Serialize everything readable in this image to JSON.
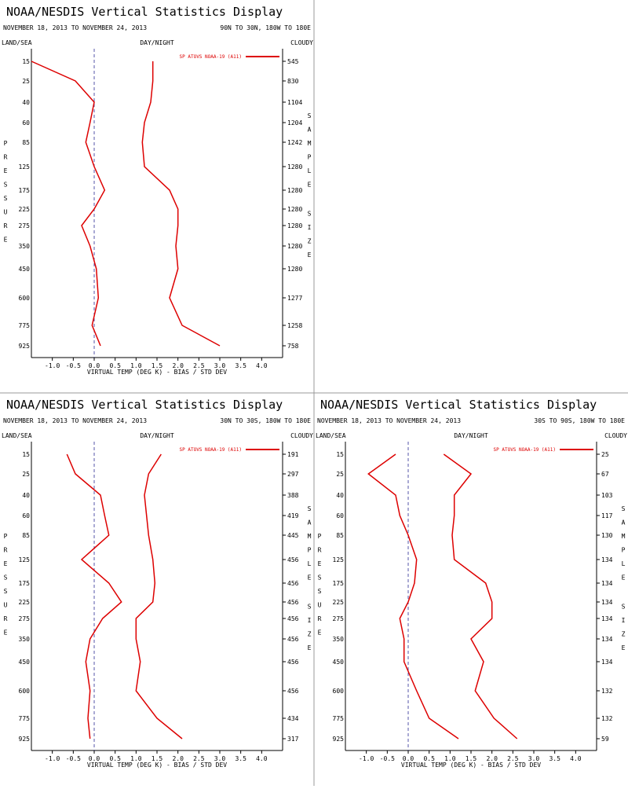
{
  "colors": {
    "line": "#dd0000",
    "frame": "#999999",
    "zero": "#5555aa",
    "text": "#000000"
  },
  "chart_data": [
    {
      "type": "line",
      "title": "NOAA/NESDIS Vertical Statistics Display",
      "date_range": "NOVEMBER 18, 2013 TO NOVEMBER 24, 2013",
      "region": "90N TO 30N, 180W TO 180E",
      "land_sea": "LAND/SEA",
      "day_night": "DAY/NIGHT",
      "cloudy": "CLOUDY",
      "ylabel": "PRESSURE",
      "y2label": "SAMPLE SIZE",
      "xlabel": "VIRTUAL TEMP (DEG K) - BIAS / STD DEV",
      "legend": "SP ATOVS NOAA-19 (A11)",
      "xlim": [
        -1.5,
        4.5
      ],
      "x_ticks": [
        "-1.0",
        "-0.5",
        "0.0",
        "0.5",
        "1.0",
        "1.5",
        "2.0",
        "2.5",
        "3.0",
        "3.5",
        "4.0"
      ],
      "pressure_levels": [
        "15",
        "25",
        "40",
        "60",
        "85",
        "125",
        "175",
        "225",
        "275",
        "350",
        "450",
        "600",
        "775",
        "925"
      ],
      "sample_size": [
        "545",
        "830",
        "1104",
        "1204",
        "1242",
        "1280",
        "1280",
        "1280",
        "1280",
        "1280",
        "1280",
        "1277",
        "1258",
        "758"
      ],
      "series": [
        {
          "kind": "bias",
          "values": [
            -1.5,
            -0.45,
            0.0,
            -0.1,
            -0.2,
            0.0,
            0.25,
            0.0,
            -0.3,
            -0.1,
            0.05,
            0.1,
            -0.05,
            0.15
          ]
        },
        {
          "kind": "std_dev",
          "values": [
            1.4,
            1.4,
            1.35,
            1.2,
            1.15,
            1.2,
            1.8,
            2.0,
            2.0,
            1.95,
            2.0,
            1.8,
            2.1,
            3.0
          ]
        }
      ]
    },
    {
      "type": "line",
      "title": "NOAA/NESDIS Vertical Statistics Display",
      "date_range": "NOVEMBER 18, 2013 TO NOVEMBER 24, 2013",
      "region": "30N TO 30S, 180W TO 180E",
      "land_sea": "LAND/SEA",
      "day_night": "DAY/NIGHT",
      "cloudy": "CLOUDY",
      "ylabel": "PRESSURE",
      "y2label": "SAMPLE SIZE",
      "xlabel": "VIRTUAL TEMP (DEG K) - BIAS / STD DEV",
      "legend": "SP ATOVS NOAA-19 (A11)",
      "xlim": [
        -1.5,
        4.5
      ],
      "x_ticks": [
        "-1.0",
        "-0.5",
        "0.0",
        "0.5",
        "1.0",
        "1.5",
        "2.0",
        "2.5",
        "3.0",
        "3.5",
        "4.0"
      ],
      "pressure_levels": [
        "15",
        "25",
        "40",
        "60",
        "85",
        "125",
        "175",
        "225",
        "275",
        "350",
        "450",
        "600",
        "775",
        "925"
      ],
      "sample_size": [
        "191",
        "297",
        "388",
        "419",
        "445",
        "456",
        "456",
        "456",
        "456",
        "456",
        "456",
        "456",
        "434",
        "317"
      ],
      "series": [
        {
          "kind": "bias",
          "values": [
            -0.65,
            -0.45,
            0.15,
            0.25,
            0.35,
            -0.3,
            0.35,
            0.65,
            0.2,
            -0.1,
            -0.2,
            -0.1,
            -0.15,
            -0.1
          ]
        },
        {
          "kind": "std_dev",
          "values": [
            1.6,
            1.3,
            1.2,
            1.25,
            1.3,
            1.4,
            1.45,
            1.4,
            1.0,
            1.0,
            1.1,
            1.0,
            1.5,
            2.1
          ]
        }
      ]
    },
    {
      "type": "line",
      "title": "NOAA/NESDIS Vertical Statistics Display",
      "date_range": "NOVEMBER 18, 2013 TO NOVEMBER 24, 2013",
      "region": "30S TO 90S, 180W TO 180E",
      "land_sea": "LAND/SEA",
      "day_night": "DAY/NIGHT",
      "cloudy": "CLOUDY",
      "ylabel": "PRESSURE",
      "y2label": "SAMPLE SIZE",
      "xlabel": "VIRTUAL TEMP (DEG K) - BIAS / STD DEV",
      "legend": "SP ATOVS NOAA-19 (A11)",
      "xlim": [
        -1.5,
        4.5
      ],
      "x_ticks": [
        "-1.0",
        "-0.5",
        "0.0",
        "0.5",
        "1.0",
        "1.5",
        "2.0",
        "2.5",
        "3.0",
        "3.5",
        "4.0"
      ],
      "pressure_levels": [
        "15",
        "25",
        "40",
        "60",
        "85",
        "125",
        "175",
        "225",
        "275",
        "350",
        "450",
        "600",
        "775",
        "925"
      ],
      "sample_size": [
        "25",
        "67",
        "103",
        "117",
        "130",
        "134",
        "134",
        "134",
        "134",
        "134",
        "134",
        "132",
        "132",
        "59"
      ],
      "series": [
        {
          "kind": "bias",
          "values": [
            -0.3,
            -0.95,
            -0.3,
            -0.2,
            0.0,
            0.2,
            0.15,
            0.0,
            -0.2,
            -0.1,
            -0.1,
            0.2,
            0.5,
            1.2
          ]
        },
        {
          "kind": "std_dev",
          "values": [
            0.85,
            1.5,
            1.1,
            1.1,
            1.05,
            1.1,
            1.85,
            2.0,
            2.0,
            1.5,
            1.8,
            1.6,
            2.05,
            2.6
          ]
        }
      ]
    }
  ]
}
